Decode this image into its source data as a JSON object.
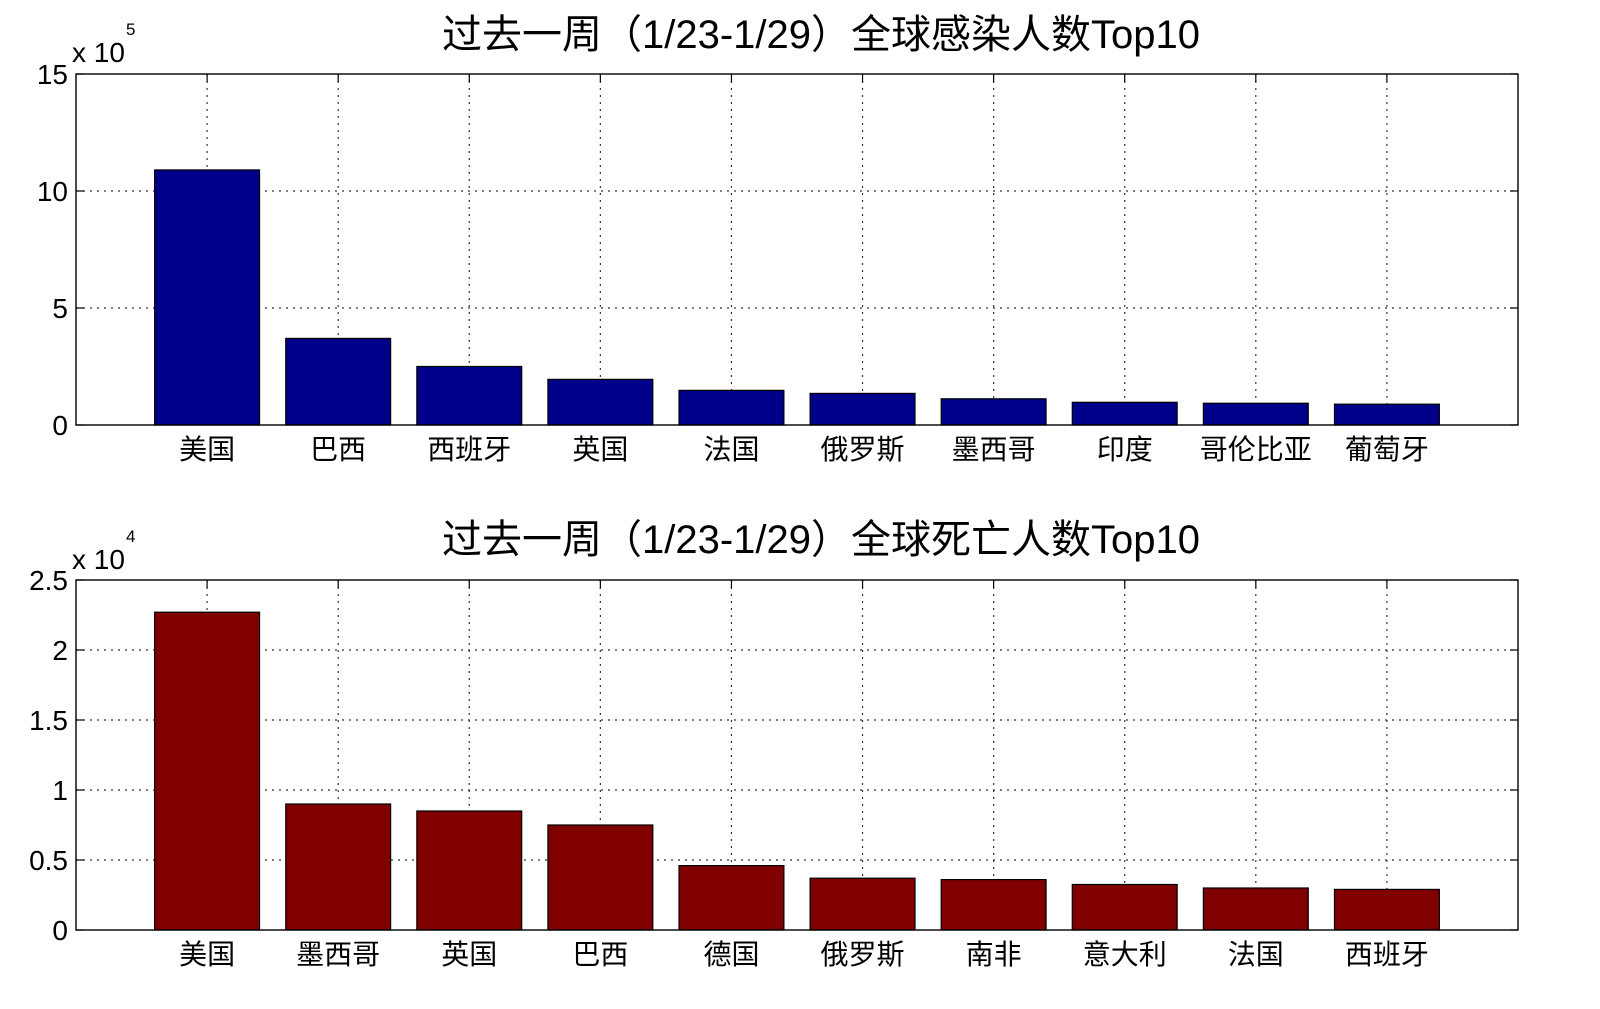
{
  "chart_data": [
    {
      "type": "bar",
      "title": "过去一周（1/23-1/29）全球感染人数Top10",
      "categories": [
        "美国",
        "巴西",
        "西班牙",
        "英国",
        "法国",
        "俄罗斯",
        "墨西哥",
        "印度",
        "哥伦比亚",
        "葡萄牙"
      ],
      "values": [
        1090000,
        370000,
        250000,
        195000,
        148000,
        135000,
        112000,
        97000,
        93000,
        89000
      ],
      "scale_label": {
        "base": "x 10",
        "exponent": "5"
      },
      "y_tick_labels": [
        "0",
        "5",
        "10",
        "15"
      ],
      "ylim": [
        0,
        1500000
      ],
      "color": "#00008B",
      "grid": true
    },
    {
      "type": "bar",
      "title": "过去一周（1/23-1/29）全球死亡人数Top10",
      "categories": [
        "美国",
        "墨西哥",
        "英国",
        "巴西",
        "德国",
        "俄罗斯",
        "南非",
        "意大利",
        "法国",
        "西班牙"
      ],
      "values": [
        22700,
        9000,
        8500,
        7500,
        4600,
        3700,
        3600,
        3250,
        3000,
        2900
      ],
      "scale_label": {
        "base": "x 10",
        "exponent": "4"
      },
      "y_tick_labels": [
        "0",
        "0.5",
        "1",
        "1.5",
        "2",
        "2.5"
      ],
      "ylim": [
        0,
        25000
      ],
      "color": "#800000",
      "grid": true
    }
  ]
}
